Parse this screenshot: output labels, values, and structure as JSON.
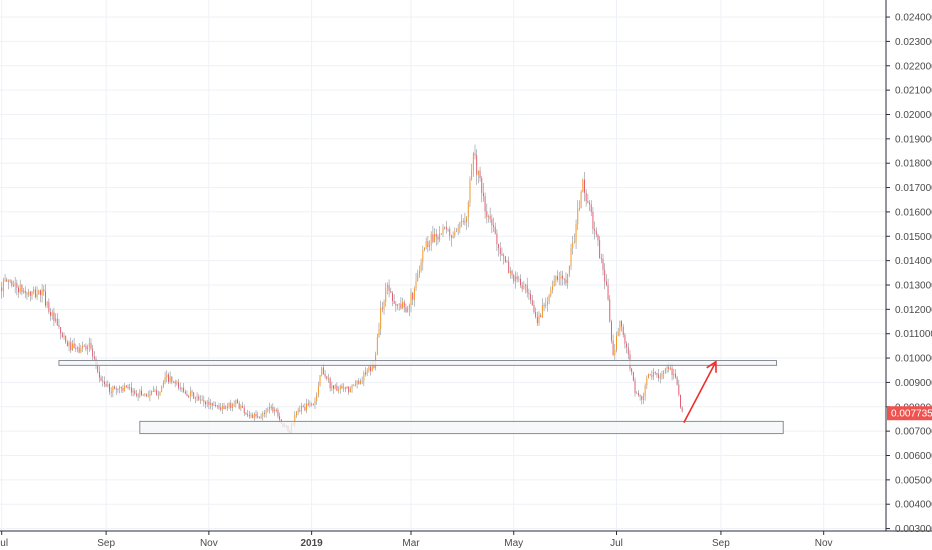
{
  "chart_data": {
    "type": "candlestick",
    "x_tick_labels": [
      "Jul",
      "Sep",
      "Nov",
      "2019",
      "Mar",
      "May",
      "Jul",
      "Sep",
      "Nov"
    ],
    "x_tick_dates": [
      "2018-07-01",
      "2018-09-01",
      "2018-11-01",
      "2019-01-01",
      "2019-03-01",
      "2019-05-01",
      "2019-07-01",
      "2019-09-01",
      "2019-11-01"
    ],
    "x_bold_label": "2019",
    "y_tick_labels": [
      "0.003000",
      "0.004000",
      "0.005000",
      "0.006000",
      "0.007000",
      "0.008000",
      "0.009000",
      "0.010000",
      "0.011000",
      "0.012000",
      "0.013000",
      "0.014000",
      "0.015000",
      "0.016000",
      "0.017000",
      "0.018000",
      "0.019000",
      "0.020000",
      "0.021000",
      "0.022000",
      "0.023000",
      "0.024000"
    ],
    "ylim": [
      0.0029,
      0.0247
    ],
    "xlim": [
      "2018-06-30",
      "2019-12-08"
    ],
    "last_price_label": "0.007735",
    "last_price": 0.007735,
    "price_path": [
      [
        "2018-06-30",
        0.0129
      ],
      [
        "2018-07-05",
        0.0132
      ],
      [
        "2018-07-12",
        0.0128
      ],
      [
        "2018-07-18",
        0.0126
      ],
      [
        "2018-07-25",
        0.0127
      ],
      [
        "2018-07-31",
        0.0117
      ],
      [
        "2018-08-08",
        0.0106
      ],
      [
        "2018-08-15",
        0.0103
      ],
      [
        "2018-08-22",
        0.0106
      ],
      [
        "2018-08-27",
        0.0093
      ],
      [
        "2018-09-03",
        0.0087
      ],
      [
        "2018-09-10",
        0.0088
      ],
      [
        "2018-09-17",
        0.0086
      ],
      [
        "2018-09-25",
        0.0085
      ],
      [
        "2018-10-02",
        0.0086
      ],
      [
        "2018-10-07",
        0.0092
      ],
      [
        "2018-10-14",
        0.0088
      ],
      [
        "2018-10-21",
        0.0085
      ],
      [
        "2018-10-28",
        0.0082
      ],
      [
        "2018-11-04",
        0.0081
      ],
      [
        "2018-11-10",
        0.0079
      ],
      [
        "2018-11-17",
        0.0082
      ],
      [
        "2018-11-24",
        0.0077
      ],
      [
        "2018-12-01",
        0.0075
      ],
      [
        "2018-12-06",
        0.008
      ],
      [
        "2018-12-11",
        0.0079
      ],
      [
        "2018-12-15",
        0.0072
      ],
      [
        "2018-12-19",
        0.007
      ],
      [
        "2018-12-24",
        0.0079
      ],
      [
        "2018-12-29",
        0.008
      ],
      [
        "2019-01-03",
        0.0082
      ],
      [
        "2019-01-07",
        0.0096
      ],
      [
        "2019-01-12",
        0.0089
      ],
      [
        "2019-01-17",
        0.0087
      ],
      [
        "2019-01-24",
        0.0087
      ],
      [
        "2019-01-31",
        0.0092
      ],
      [
        "2019-02-07",
        0.0097
      ],
      [
        "2019-02-11",
        0.0119
      ],
      [
        "2019-02-15",
        0.013
      ],
      [
        "2019-02-20",
        0.0122
      ],
      [
        "2019-02-26",
        0.0121
      ],
      [
        "2019-03-03",
        0.0127
      ],
      [
        "2019-03-08",
        0.0145
      ],
      [
        "2019-03-14",
        0.015
      ],
      [
        "2019-03-20",
        0.0152
      ],
      [
        "2019-03-28",
        0.015
      ],
      [
        "2019-04-03",
        0.016
      ],
      [
        "2019-04-07",
        0.0185
      ],
      [
        "2019-04-10",
        0.0175
      ],
      [
        "2019-04-14",
        0.016
      ],
      [
        "2019-04-19",
        0.0153
      ],
      [
        "2019-04-25",
        0.014
      ],
      [
        "2019-05-01",
        0.0133
      ],
      [
        "2019-05-08",
        0.0128
      ],
      [
        "2019-05-15",
        0.0115
      ],
      [
        "2019-05-20",
        0.0124
      ],
      [
        "2019-05-26",
        0.0132
      ],
      [
        "2019-06-01",
        0.0133
      ],
      [
        "2019-06-06",
        0.015
      ],
      [
        "2019-06-11",
        0.0172
      ],
      [
        "2019-06-16",
        0.0158
      ],
      [
        "2019-06-20",
        0.0146
      ],
      [
        "2019-06-25",
        0.013
      ],
      [
        "2019-06-29",
        0.01
      ],
      [
        "2019-07-03",
        0.0115
      ],
      [
        "2019-07-08",
        0.01
      ],
      [
        "2019-07-12",
        0.0087
      ],
      [
        "2019-07-16",
        0.0082
      ],
      [
        "2019-07-20",
        0.0093
      ],
      [
        "2019-07-25",
        0.0093
      ],
      [
        "2019-07-31",
        0.0095
      ],
      [
        "2019-08-05",
        0.0093
      ],
      [
        "2019-08-09",
        0.0077
      ]
    ],
    "zones": [
      {
        "name": "resistance-zone",
        "start": "2018-08-04",
        "end": "2019-10-04",
        "low": 0.0097,
        "high": 0.0099
      },
      {
        "name": "support-zone",
        "start": "2018-09-21",
        "end": "2019-10-08",
        "low": 0.0069,
        "high": 0.0074
      }
    ],
    "annotation_arrow": {
      "from": [
        "2019-08-10",
        0.00735
      ],
      "to": [
        "2019-08-29",
        0.00985
      ]
    },
    "colors": {
      "up": "#f7931a",
      "down": "#e8556b",
      "wick": "#8c9096",
      "grid": "#eef1f6",
      "axis": "#2a2e39",
      "price_badge": "#ef5350",
      "arrow": "#ef2d2d",
      "zone_fill": "#f4f5f7",
      "zone_stroke": "#8a8d96"
    },
    "grid": true
  }
}
